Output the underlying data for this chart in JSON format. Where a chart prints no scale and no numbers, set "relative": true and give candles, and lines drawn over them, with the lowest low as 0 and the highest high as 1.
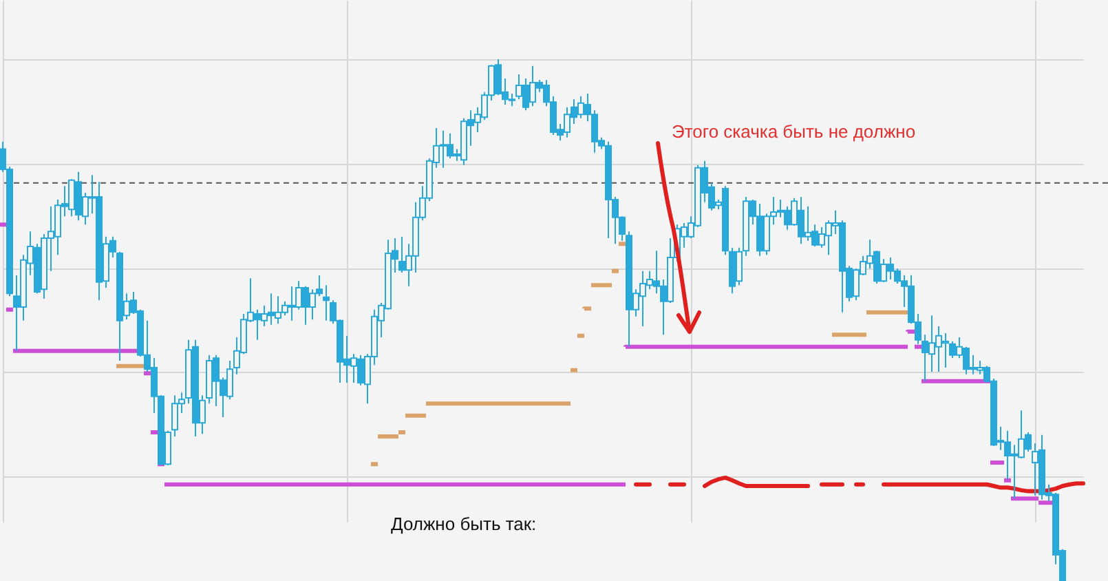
{
  "chart_data": {
    "type": "candlestick",
    "relative": true,
    "grid": true,
    "color": "#29a9da",
    "categories": [
      null,
      null,
      null,
      null,
      null,
      null,
      null,
      null,
      null,
      null,
      null,
      null,
      null,
      null,
      null,
      null,
      null,
      null,
      null,
      null,
      null,
      null,
      null,
      null,
      null,
      null,
      null,
      null,
      null,
      null,
      null,
      null,
      null,
      null,
      null,
      null,
      null,
      null,
      null,
      null,
      null,
      null,
      null,
      null,
      null,
      null,
      null,
      null,
      null,
      null,
      null,
      null,
      null,
      null,
      null,
      null,
      null,
      null,
      null,
      null,
      null,
      null,
      null,
      null,
      null,
      null,
      null,
      null,
      null,
      null,
      null,
      null,
      null,
      null,
      null,
      null,
      null,
      null,
      null,
      null,
      null,
      null,
      null,
      null,
      null,
      null,
      null,
      null,
      null,
      null,
      null,
      null,
      null,
      null,
      null,
      null,
      null,
      null,
      null,
      null,
      null,
      null,
      null,
      null,
      null,
      null,
      null,
      null,
      null,
      null,
      null,
      null,
      null,
      null,
      null,
      null,
      null,
      null,
      null,
      null,
      null,
      null,
      null,
      null,
      null,
      null,
      null,
      null,
      null,
      null,
      null,
      null,
      null,
      null,
      null,
      null,
      null,
      null,
      null,
      null,
      null,
      null,
      null,
      null,
      null,
      null,
      null,
      null,
      null,
      null,
      null,
      null,
      null,
      null,
      null,
      null,
      null,
      null
    ],
    "ohlc": [
      [
        0.828,
        0.842,
        0.784,
        0.789
      ],
      [
        0.789,
        0.794,
        0.546,
        0.551
      ],
      [
        0.546,
        0.586,
        0.441,
        0.525
      ],
      [
        0.525,
        0.625,
        0.499,
        0.615
      ],
      [
        0.609,
        0.67,
        0.586,
        0.641
      ],
      [
        0.639,
        0.646,
        0.551,
        0.554
      ],
      [
        0.559,
        0.665,
        0.541,
        0.657
      ],
      [
        0.657,
        0.718,
        0.594,
        0.67
      ],
      [
        0.66,
        0.731,
        0.625,
        0.72
      ],
      [
        0.723,
        0.757,
        0.699,
        0.718
      ],
      [
        0.712,
        0.77,
        0.699,
        0.768
      ],
      [
        0.765,
        0.784,
        0.691,
        0.702
      ],
      [
        0.699,
        0.744,
        0.683,
        0.736
      ],
      [
        0.734,
        0.778,
        0.704,
        0.736
      ],
      [
        0.736,
        0.765,
        0.538,
        0.573
      ],
      [
        0.575,
        0.66,
        0.562,
        0.646
      ],
      [
        0.652,
        0.66,
        0.62,
        0.631
      ],
      [
        0.628,
        0.631,
        0.422,
        0.499
      ],
      [
        0.509,
        0.551,
        0.501,
        0.536
      ],
      [
        0.538,
        0.554,
        0.512,
        0.515
      ],
      [
        0.517,
        0.52,
        0.43,
        0.433
      ],
      [
        0.433,
        0.499,
        0.401,
        0.406
      ],
      [
        0.409,
        0.427,
        0.322,
        0.354
      ],
      [
        0.354,
        0.356,
        0.222,
        0.224
      ],
      [
        0.224,
        0.288,
        0.222,
        0.285
      ],
      [
        0.29,
        0.356,
        0.277,
        0.34
      ],
      [
        0.34,
        0.361,
        0.322,
        0.348
      ],
      [
        0.351,
        0.462,
        0.34,
        0.443
      ],
      [
        0.449,
        0.462,
        0.277,
        0.303
      ],
      [
        0.303,
        0.356,
        0.282,
        0.346
      ],
      [
        0.351,
        0.433,
        0.34,
        0.422
      ],
      [
        0.427,
        0.433,
        0.335,
        0.383
      ],
      [
        0.385,
        0.39,
        0.314,
        0.356
      ],
      [
        0.354,
        0.422,
        0.348,
        0.406
      ],
      [
        0.409,
        0.467,
        0.396,
        0.441
      ],
      [
        0.438,
        0.512,
        0.435,
        0.501
      ],
      [
        0.499,
        0.58,
        0.496,
        0.515
      ],
      [
        0.512,
        0.52,
        0.462,
        0.501
      ],
      [
        0.499,
        0.528,
        0.488,
        0.512
      ],
      [
        0.515,
        0.551,
        0.491,
        0.509
      ],
      [
        0.504,
        0.546,
        0.493,
        0.515
      ],
      [
        0.515,
        0.536,
        0.509,
        0.528
      ],
      [
        0.528,
        0.565,
        0.499,
        0.525
      ],
      [
        0.525,
        0.575,
        0.52,
        0.562
      ],
      [
        0.562,
        0.565,
        0.491,
        0.525
      ],
      [
        0.525,
        0.559,
        0.501,
        0.551
      ],
      [
        0.559,
        0.586,
        0.546,
        0.551
      ],
      [
        0.544,
        0.567,
        0.499,
        0.538
      ],
      [
        0.533,
        0.538,
        0.493,
        0.499
      ],
      [
        0.499,
        0.501,
        0.38,
        0.42
      ],
      [
        0.425,
        0.47,
        0.38,
        0.414
      ],
      [
        0.412,
        0.435,
        0.38,
        0.427
      ],
      [
        0.425,
        0.433,
        0.375,
        0.38
      ],
      [
        0.377,
        0.435,
        0.34,
        0.43
      ],
      [
        0.43,
        0.52,
        0.414,
        0.507
      ],
      [
        0.499,
        0.533,
        0.467,
        0.528
      ],
      [
        0.522,
        0.654,
        0.52,
        0.628
      ],
      [
        0.633,
        0.657,
        0.591,
        0.617
      ],
      [
        0.612,
        0.66,
        0.591,
        0.596
      ],
      [
        0.596,
        0.646,
        0.565,
        0.623
      ],
      [
        0.623,
        0.726,
        0.591,
        0.697
      ],
      [
        0.697,
        0.757,
        0.691,
        0.734
      ],
      [
        0.734,
        0.81,
        0.728,
        0.805
      ],
      [
        0.802,
        0.868,
        0.792,
        0.834
      ],
      [
        0.834,
        0.863,
        0.792,
        0.836
      ],
      [
        0.836,
        0.858,
        0.81,
        0.815
      ],
      [
        0.818,
        0.828,
        0.805,
        0.815
      ],
      [
        0.807,
        0.887,
        0.797,
        0.881
      ],
      [
        0.884,
        0.902,
        0.834,
        0.873
      ],
      [
        0.879,
        0.908,
        0.86,
        0.894
      ],
      [
        0.889,
        0.937,
        0.884,
        0.931
      ],
      [
        0.931,
        0.989,
        0.921,
        0.987
      ],
      [
        0.989,
        1,
        0.931,
        0.934
      ],
      [
        0.937,
        0.963,
        0.913,
        0.923
      ],
      [
        0.923,
        0.934,
        0.91,
        0.921
      ],
      [
        0.929,
        0.971,
        0.923,
        0.95
      ],
      [
        0.95,
        0.963,
        0.902,
        0.908
      ],
      [
        0.918,
        0.987,
        0.91,
        0.955
      ],
      [
        0.955,
        0.96,
        0.937,
        0.945
      ],
      [
        0.95,
        0.96,
        0.91,
        0.918
      ],
      [
        0.918,
        0.929,
        0.855,
        0.86
      ],
      [
        0.865,
        0.876,
        0.844,
        0.855
      ],
      [
        0.86,
        0.908,
        0.85,
        0.894
      ],
      [
        0.908,
        0.923,
        0.876,
        0.889
      ],
      [
        0.894,
        0.929,
        0.887,
        0.916
      ],
      [
        0.913,
        0.934,
        0.881,
        0.894
      ],
      [
        0.894,
        0.902,
        0.821,
        0.842
      ],
      [
        0.844,
        0.85,
        0.828,
        0.834
      ],
      [
        0.834,
        0.842,
        0.657,
        0.731
      ],
      [
        0.731,
        0.736,
        0.646,
        0.697
      ],
      [
        0.697,
        0.699,
        0.652,
        0.665
      ],
      [
        0.662,
        0.67,
        0.449,
        0.52
      ],
      [
        0.52,
        0.559,
        0.507,
        0.551
      ],
      [
        0.546,
        0.594,
        0.488,
        0.57
      ],
      [
        0.567,
        0.594,
        0.559,
        0.578
      ],
      [
        0.575,
        0.633,
        0.551,
        0.565
      ],
      [
        0.565,
        0.578,
        0.472,
        0.536
      ],
      [
        0.536,
        0.657,
        0.533,
        0.62
      ],
      [
        0.62,
        0.683,
        0.612,
        0.675
      ],
      [
        0.66,
        0.686,
        0.639,
        0.678
      ],
      [
        0.66,
        0.699,
        0.657,
        0.686
      ],
      [
        0.681,
        0.797,
        0.678,
        0.792
      ],
      [
        0.792,
        0.805,
        0.726,
        0.744
      ],
      [
        0.755,
        0.763,
        0.71,
        0.715
      ],
      [
        0.72,
        0.731,
        0.712,
        0.726
      ],
      [
        0.752,
        0.757,
        0.625,
        0.633
      ],
      [
        0.631,
        0.639,
        0.551,
        0.565
      ],
      [
        0.575,
        0.639,
        0.567,
        0.631
      ],
      [
        0.633,
        0.736,
        0.623,
        0.728
      ],
      [
        0.728,
        0.731,
        0.683,
        0.699
      ],
      [
        0.699,
        0.723,
        0.623,
        0.633
      ],
      [
        0.633,
        0.704,
        0.625,
        0.699
      ],
      [
        0.699,
        0.736,
        0.683,
        0.707
      ],
      [
        0.71,
        0.731,
        0.697,
        0.707
      ],
      [
        0.71,
        0.718,
        0.673,
        0.683
      ],
      [
        0.683,
        0.734,
        0.681,
        0.728
      ],
      [
        0.71,
        0.736,
        0.646,
        0.66
      ],
      [
        0.66,
        0.718,
        0.652,
        0.668
      ],
      [
        0.67,
        0.683,
        0.641,
        0.644
      ],
      [
        0.644,
        0.678,
        0.639,
        0.665
      ],
      [
        0.662,
        0.691,
        0.625,
        0.686
      ],
      [
        0.681,
        0.71,
        0.665,
        0.686
      ],
      [
        0.686,
        0.691,
        0.515,
        0.594
      ],
      [
        0.599,
        0.604,
        0.536,
        0.544
      ],
      [
        0.546,
        0.599,
        0.538,
        0.596
      ],
      [
        0.588,
        0.623,
        0.586,
        0.612
      ],
      [
        0.609,
        0.654,
        0.599,
        0.623
      ],
      [
        0.631,
        0.633,
        0.57,
        0.575
      ],
      [
        0.575,
        0.617,
        0.573,
        0.607
      ],
      [
        0.607,
        0.62,
        0.578,
        0.594
      ],
      [
        0.594,
        0.599,
        0.57,
        0.575
      ],
      [
        0.575,
        0.586,
        0.525,
        0.565
      ],
      [
        0.565,
        0.586,
        0.493,
        0.496
      ],
      [
        0.496,
        0.512,
        0.454,
        0.462
      ],
      [
        0.459,
        0.472,
        0.383,
        0.438
      ],
      [
        0.435,
        0.509,
        0.401,
        0.456
      ],
      [
        0.449,
        0.488,
        0.401,
        0.47
      ],
      [
        0.456,
        0.475,
        0.409,
        0.459
      ],
      [
        0.454,
        0.459,
        0.427,
        0.433
      ],
      [
        0.433,
        0.467,
        0.427,
        0.449
      ],
      [
        0.446,
        0.449,
        0.396,
        0.406
      ],
      [
        0.409,
        0.433,
        0.396,
        0.406
      ],
      [
        0.404,
        0.422,
        0.396,
        0.409
      ],
      [
        0.409,
        0.412,
        0.38,
        0.383
      ],
      [
        0.383,
        0.388,
        0.259,
        0.261
      ],
      [
        0.269,
        0.296,
        0.251,
        0.266
      ],
      [
        0.266,
        0.288,
        0.195,
        0.24
      ],
      [
        0.243,
        0.261,
        0.158,
        0.24
      ],
      [
        0.237,
        0.327,
        0.235,
        0.272
      ],
      [
        0.28,
        0.285,
        0.248,
        0.253
      ],
      [
        0.227,
        0.264,
        0.164,
        0.248
      ],
      [
        0.251,
        0.28,
        0.156,
        0.166
      ],
      [
        0.169,
        0.185,
        0.153,
        0.164
      ],
      [
        0.166,
        0.169,
        0.032,
        0.05
      ],
      [
        0.058,
        0.061,
        0,
        0
      ],
      null,
      null,
      null
    ],
    "series": [
      {
        "type": "step",
        "color": "#cc4fd6",
        "line_style": "dashed",
        "values": [
          0.683,
          0.52,
          0.441,
          0.441,
          0.441,
          0.441,
          0.441,
          0.441,
          0.441,
          0.441,
          0.441,
          0.441,
          0.441,
          0.441,
          0.441,
          0.441,
          0.441,
          0.441,
          0.441,
          0.441,
          0.441,
          0.398,
          0.285,
          0.224,
          0.185,
          0.185,
          0.185,
          0.185,
          0.185,
          0.185,
          0.185,
          0.185,
          0.185,
          0.185,
          0.185,
          0.185,
          0.185,
          0.185,
          0.185,
          0.185,
          0.185,
          0.185,
          0.185,
          0.185,
          0.185,
          0.185,
          0.185,
          0.185,
          0.185,
          0.185,
          0.185,
          0.185,
          0.185,
          0.185,
          0.185,
          0.185,
          0.185,
          0.185,
          0.185,
          0.185,
          0.185,
          0.185,
          0.185,
          0.185,
          0.185,
          0.185,
          0.185,
          0.185,
          0.185,
          0.185,
          0.185,
          0.185,
          0.185,
          0.185,
          0.185,
          0.185,
          0.185,
          0.185,
          0.185,
          0.185,
          0.185,
          0.185,
          0.185,
          0.185,
          0.185,
          0.185,
          0.185,
          0.185,
          0.185,
          0.185,
          0.185,
          0.449,
          0.449,
          0.449,
          0.449,
          0.449,
          0.449,
          0.449,
          0.449,
          0.449,
          0.449,
          0.449,
          0.449,
          0.449,
          0.449,
          0.449,
          0.449,
          0.449,
          0.449,
          0.449,
          0.449,
          0.449,
          0.449,
          0.449,
          0.449,
          0.449,
          0.449,
          0.449,
          0.449,
          0.449,
          0.449,
          0.449,
          0.449,
          0.449,
          0.449,
          0.449,
          0.449,
          0.449,
          0.449,
          0.449,
          0.449,
          0.449,
          0.478,
          0.449,
          0.383,
          0.383,
          0.383,
          0.383,
          0.383,
          0.383,
          0.383,
          0.383,
          0.383,
          0.383,
          0.227,
          0.227,
          0.193,
          0.158,
          0.158,
          0.158,
          0.158,
          0.15,
          0.15,
          null,
          null,
          null,
          null,
          null
        ]
      },
      {
        "type": "step",
        "color": "#dba36a",
        "line_style": "dashed",
        "values": [
          null,
          null,
          null,
          null,
          null,
          null,
          null,
          null,
          null,
          null,
          null,
          null,
          null,
          null,
          null,
          null,
          null,
          0.412,
          0.412,
          0.412,
          0.412,
          null,
          null,
          null,
          null,
          null,
          null,
          null,
          null,
          null,
          null,
          null,
          null,
          null,
          null,
          null,
          null,
          null,
          null,
          null,
          null,
          null,
          null,
          null,
          null,
          null,
          null,
          null,
          null,
          null,
          null,
          null,
          null,
          null,
          0.224,
          0.277,
          0.277,
          0.277,
          0.285,
          0.317,
          0.317,
          0.317,
          0.34,
          0.34,
          0.34,
          0.34,
          0.34,
          0.34,
          0.34,
          0.34,
          0.34,
          0.34,
          0.34,
          0.34,
          0.34,
          0.34,
          0.34,
          0.34,
          0.34,
          0.34,
          0.34,
          0.34,
          0.34,
          0.404,
          0.47,
          0.522,
          0.567,
          0.567,
          0.567,
          0.594,
          0.646,
          null,
          null,
          null,
          null,
          null,
          null,
          null,
          null,
          null,
          null,
          null,
          null,
          null,
          null,
          null,
          null,
          null,
          null,
          null,
          null,
          null,
          null,
          null,
          null,
          null,
          null,
          null,
          null,
          null,
          null,
          0.472,
          0.472,
          0.472,
          0.472,
          0.472,
          0.515,
          0.515,
          0.515,
          0.515,
          0.515,
          0.515,
          null,
          null,
          null,
          null,
          null,
          null,
          null,
          null,
          null,
          null,
          null,
          null,
          null,
          null,
          null,
          null,
          null,
          null,
          null,
          null,
          null,
          null,
          null,
          null,
          null,
          null
        ]
      },
      {
        "type": "line",
        "color": "#e01f1f",
        "line_style": "dashed",
        "values": [
          null,
          null,
          null,
          null,
          null,
          null,
          null,
          null,
          null,
          null,
          null,
          null,
          null,
          null,
          null,
          null,
          null,
          null,
          null,
          null,
          null,
          null,
          null,
          null,
          null,
          null,
          null,
          null,
          null,
          null,
          null,
          null,
          null,
          null,
          null,
          null,
          null,
          null,
          null,
          null,
          null,
          null,
          null,
          null,
          null,
          null,
          null,
          null,
          null,
          null,
          null,
          null,
          null,
          null,
          null,
          null,
          null,
          null,
          null,
          null,
          null,
          null,
          null,
          null,
          null,
          null,
          null,
          null,
          null,
          null,
          null,
          null,
          null,
          null,
          null,
          null,
          null,
          null,
          null,
          null,
          null,
          null,
          null,
          null,
          null,
          null,
          null,
          null,
          null,
          null,
          null,
          null,
          0.185,
          0.185,
          0.185,
          null,
          null,
          0.185,
          0.185,
          0.185,
          null,
          null,
          0.182,
          0.19,
          0.195,
          0.198,
          0.193,
          0.187,
          0.182,
          0.182,
          0.182,
          0.182,
          0.182,
          0.182,
          0.182,
          0.182,
          0.182,
          0.182,
          null,
          0.185,
          0.185,
          0.185,
          0.185,
          null,
          0.185,
          0.185,
          null,
          null,
          0.185,
          0.185,
          0.185,
          0.185,
          0.185,
          0.185,
          0.185,
          0.185,
          0.185,
          0.185,
          0.185,
          0.185,
          0.185,
          0.185,
          0.185,
          0.185,
          0.182,
          0.179,
          0.179,
          0.177,
          0.174,
          0.172,
          0.172,
          0.172,
          0.174,
          0.177,
          0.182,
          0.185,
          0.187,
          0.187
        ]
      }
    ],
    "ref_lines": [
      {
        "axis": "y",
        "value": 0.763,
        "color": "#555555",
        "line_style": "dashed"
      }
    ],
    "annotations": [
      "Этого скачка быть не должно",
      "Должно быть так:"
    ]
  }
}
